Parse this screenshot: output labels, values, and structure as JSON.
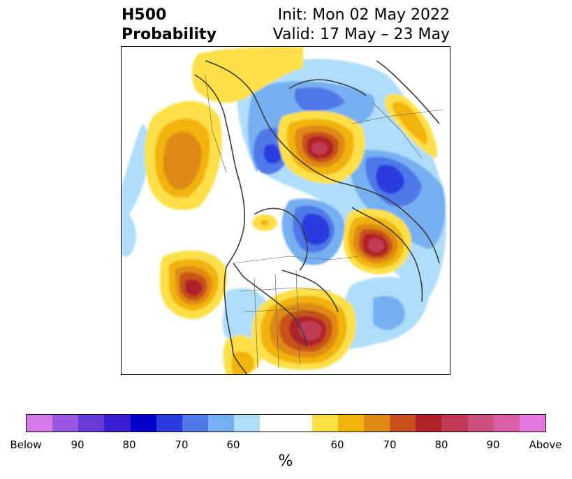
{
  "header": {
    "title_line1": "H500",
    "title_line2": "Probability",
    "init": "Init: Mon 02 May 2022",
    "valid": "Valid: 17 May – 23 May"
  },
  "colorbar": {
    "colors": [
      "#d678e8",
      "#9b58e0",
      "#6a3ad8",
      "#3a1ed0",
      "#0000c8",
      "#2a3ee0",
      "#4f78e8",
      "#76b0f0",
      "#aeddfa",
      "#ffffff",
      "#fde046",
      "#f2b30b",
      "#df8a14",
      "#c85219",
      "#b0242a",
      "#c03a55",
      "#cc5080",
      "#d85ea8",
      "#e478dc"
    ],
    "ticks": [
      "Below",
      "90",
      "80",
      "70",
      "60",
      "60",
      "70",
      "80",
      "90",
      "Above"
    ],
    "label": "%"
  }
}
